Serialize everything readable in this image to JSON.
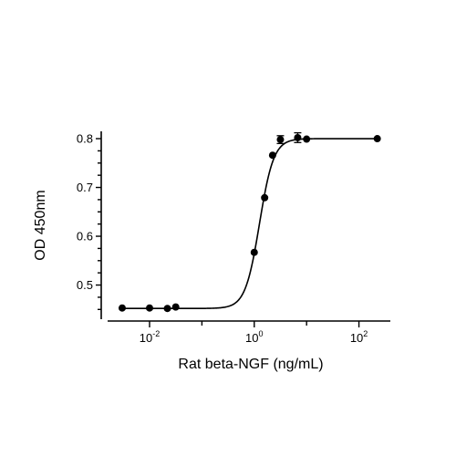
{
  "chart_data": {
    "type": "scatter",
    "xlabel": "Rat beta-NGF (ng/mL)",
    "ylabel": "OD 450nm",
    "x_scale": "log",
    "xlim": [
      0.00158,
      398
    ],
    "ylim": [
      0.43,
      0.815
    ],
    "x_ticks": [
      {
        "value": 0.01,
        "base": "10",
        "exp": "-2"
      },
      {
        "value": 1,
        "base": "10",
        "exp": "0"
      },
      {
        "value": 100,
        "base": "10",
        "exp": "2"
      }
    ],
    "y_ticks": [
      {
        "value": 0.5,
        "label": "0.5"
      },
      {
        "value": 0.6,
        "label": "0.6"
      },
      {
        "value": 0.7,
        "label": "0.7"
      },
      {
        "value": 0.8,
        "label": "0.8"
      }
    ],
    "grid": false,
    "legend": "none",
    "points": [
      {
        "x": 0.003,
        "y": 0.453,
        "err": 0
      },
      {
        "x": 0.01,
        "y": 0.453,
        "err": 0
      },
      {
        "x": 0.0219,
        "y": 0.452,
        "err": 0
      },
      {
        "x": 0.0316,
        "y": 0.455,
        "err": 0
      },
      {
        "x": 1.0,
        "y": 0.567,
        "err": 0
      },
      {
        "x": 1.58,
        "y": 0.679,
        "err": 0
      },
      {
        "x": 2.24,
        "y": 0.766,
        "err": 0
      },
      {
        "x": 3.16,
        "y": 0.798,
        "err": 0.008
      },
      {
        "x": 6.76,
        "y": 0.802,
        "err": 0.01
      },
      {
        "x": 10,
        "y": 0.799,
        "err": 0
      },
      {
        "x": 224,
        "y": 0.8,
        "err": 0
      }
    ],
    "fit_curve": {
      "type": "4PL",
      "bottom": 0.452,
      "top": 0.8,
      "ec50": 1.26,
      "hill": 3.2
    },
    "colors": {
      "marker": "#000000",
      "line": "#000000",
      "axis": "#000000"
    }
  }
}
